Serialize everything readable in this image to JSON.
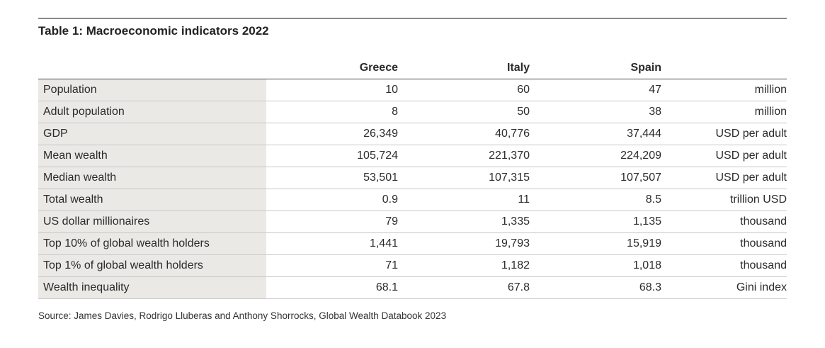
{
  "title": "Table 1: Macroeconomic indicators 2022",
  "columns": [
    "Greece",
    "Italy",
    "Spain"
  ],
  "rows": [
    {
      "label": "Population",
      "values": [
        "10",
        "60",
        "47"
      ],
      "unit": "million"
    },
    {
      "label": "Adult population",
      "values": [
        "8",
        "50",
        "38"
      ],
      "unit": "million"
    },
    {
      "label": "GDP",
      "values": [
        "26,349",
        "40,776",
        "37,444"
      ],
      "unit": "USD per adult"
    },
    {
      "label": "Mean wealth",
      "values": [
        "105,724",
        "221,370",
        "224,209"
      ],
      "unit": "USD per adult"
    },
    {
      "label": "Median wealth",
      "values": [
        "53,501",
        "107,315",
        "107,507"
      ],
      "unit": "USD per adult"
    },
    {
      "label": "Total wealth",
      "values": [
        "0.9",
        "11",
        "8.5"
      ],
      "unit": "trillion USD"
    },
    {
      "label": "US dollar millionaires",
      "values": [
        "79",
        "1,335",
        "1,135"
      ],
      "unit": "thousand"
    },
    {
      "label": "Top 10% of global wealth holders",
      "values": [
        "1,441",
        "19,793",
        "15,919"
      ],
      "unit": "thousand"
    },
    {
      "label": "Top 1% of global wealth holders",
      "values": [
        "71",
        "1,182",
        "1,018"
      ],
      "unit": "thousand"
    },
    {
      "label": "Wealth inequality",
      "values": [
        "68.1",
        "67.8",
        "68.3"
      ],
      "unit": "Gini index"
    }
  ],
  "source": "Source: James Davies, Rodrigo Lluberas and Anthony Shorrocks, Global Wealth Databook 2023"
}
